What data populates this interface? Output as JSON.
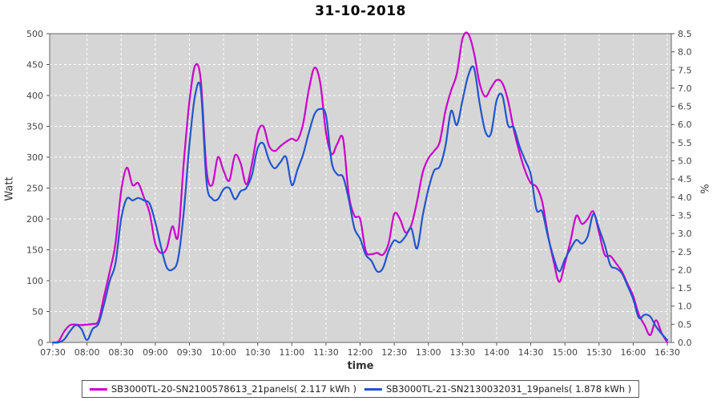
{
  "title": "31-10-2018",
  "chart_data": {
    "type": "line",
    "title": "31-10-2018",
    "xlabel": "time",
    "ylabel_left": "Watt",
    "ylabel_right": "%",
    "ylim_left": [
      0,
      500
    ],
    "ylim_right": [
      0,
      8.5
    ],
    "grid": "white dashed gridlines on gray plot background",
    "legend_position": "bottom",
    "plot_bg_color": "#d6d6d6",
    "grid_color": "#ffffff",
    "x_ticks": [
      "07:30",
      "08:00",
      "08:30",
      "09:00",
      "09:30",
      "10:00",
      "10:30",
      "11:00",
      "11:30",
      "12:00",
      "12:30",
      "13:00",
      "13:30",
      "14:00",
      "14:30",
      "15:00",
      "15:30",
      "16:00",
      "16:30"
    ],
    "y_ticks_left": [
      0,
      50,
      100,
      150,
      200,
      250,
      300,
      350,
      400,
      450,
      500
    ],
    "y_ticks_right": [
      "0.0",
      "0.5",
      "1.0",
      "1.5",
      "2.0",
      "2.5",
      "3.0",
      "3.5",
      "4.0",
      "4.5",
      "5.0",
      "5.5",
      "6.0",
      "6.5",
      "7.0",
      "7.5",
      "8.0",
      "8.5"
    ],
    "x": [
      "07:30",
      "07:35",
      "07:40",
      "07:45",
      "07:50",
      "07:55",
      "08:00",
      "08:05",
      "08:10",
      "08:15",
      "08:20",
      "08:25",
      "08:30",
      "08:35",
      "08:40",
      "08:45",
      "08:50",
      "08:55",
      "09:00",
      "09:05",
      "09:10",
      "09:15",
      "09:20",
      "09:25",
      "09:30",
      "09:35",
      "09:40",
      "09:45",
      "09:50",
      "09:55",
      "10:00",
      "10:05",
      "10:10",
      "10:15",
      "10:20",
      "10:25",
      "10:30",
      "10:35",
      "10:40",
      "10:45",
      "10:50",
      "10:55",
      "11:00",
      "11:05",
      "11:10",
      "11:15",
      "11:20",
      "11:25",
      "11:30",
      "11:35",
      "11:40",
      "11:45",
      "11:50",
      "11:55",
      "12:00",
      "12:05",
      "12:10",
      "12:15",
      "12:20",
      "12:25",
      "12:30",
      "12:35",
      "12:40",
      "12:45",
      "12:50",
      "12:55",
      "13:00",
      "13:05",
      "13:10",
      "13:15",
      "13:20",
      "13:25",
      "13:30",
      "13:35",
      "13:40",
      "13:45",
      "13:50",
      "13:55",
      "14:00",
      "14:05",
      "14:10",
      "14:15",
      "14:20",
      "14:25",
      "14:30",
      "14:35",
      "14:40",
      "14:45",
      "14:50",
      "14:55",
      "15:00",
      "15:05",
      "15:10",
      "15:15",
      "15:20",
      "15:25",
      "15:30",
      "15:35",
      "15:40",
      "15:45",
      "15:50",
      "15:55",
      "16:00",
      "16:05",
      "16:10",
      "16:15",
      "16:20",
      "16:25",
      "16:30"
    ],
    "series": [
      {
        "name": "SB3000TL-20-SN2100578613_21panels( 2.117 kWh )",
        "color": "#cc00cc",
        "values": [
          0,
          2,
          18,
          28,
          29,
          28,
          29,
          30,
          35,
          75,
          115,
          160,
          245,
          283,
          255,
          258,
          235,
          210,
          160,
          145,
          152,
          188,
          172,
          290,
          390,
          448,
          425,
          280,
          255,
          300,
          278,
          262,
          303,
          290,
          256,
          290,
          340,
          350,
          318,
          310,
          318,
          325,
          330,
          328,
          355,
          410,
          445,
          420,
          340,
          305,
          322,
          330,
          240,
          205,
          200,
          148,
          143,
          145,
          142,
          160,
          208,
          200,
          178,
          190,
          228,
          275,
          298,
          310,
          325,
          375,
          408,
          435,
          492,
          500,
          470,
          420,
          398,
          412,
          425,
          420,
          392,
          345,
          308,
          278,
          258,
          252,
          228,
          175,
          132,
          98,
          128,
          165,
          205,
          192,
          200,
          212,
          178,
          142,
          140,
          128,
          115,
          95,
          75,
          45,
          28,
          12,
          36,
          15,
          0
        ]
      },
      {
        "name": "SB3000TL-21-SN2130032031_19panels( 1.878 kWh )",
        "color": "#2255cc",
        "values": [
          0,
          0,
          5,
          18,
          28,
          22,
          4,
          22,
          30,
          62,
          100,
          128,
          200,
          233,
          230,
          234,
          230,
          225,
          195,
          155,
          122,
          118,
          135,
          210,
          320,
          400,
          410,
          260,
          233,
          232,
          248,
          250,
          232,
          245,
          250,
          272,
          315,
          322,
          295,
          282,
          292,
          300,
          255,
          280,
          305,
          340,
          370,
          378,
          368,
          292,
          272,
          268,
          232,
          185,
          168,
          142,
          132,
          115,
          120,
          148,
          165,
          162,
          172,
          185,
          152,
          205,
          248,
          278,
          285,
          318,
          375,
          352,
          392,
          432,
          445,
          388,
          342,
          338,
          392,
          400,
          352,
          348,
          318,
          295,
          272,
          215,
          212,
          172,
          138,
          115,
          135,
          152,
          166,
          160,
          172,
          208,
          184,
          158,
          125,
          120,
          112,
          92,
          70,
          40,
          45,
          42,
          26,
          14,
          4
        ]
      }
    ]
  }
}
